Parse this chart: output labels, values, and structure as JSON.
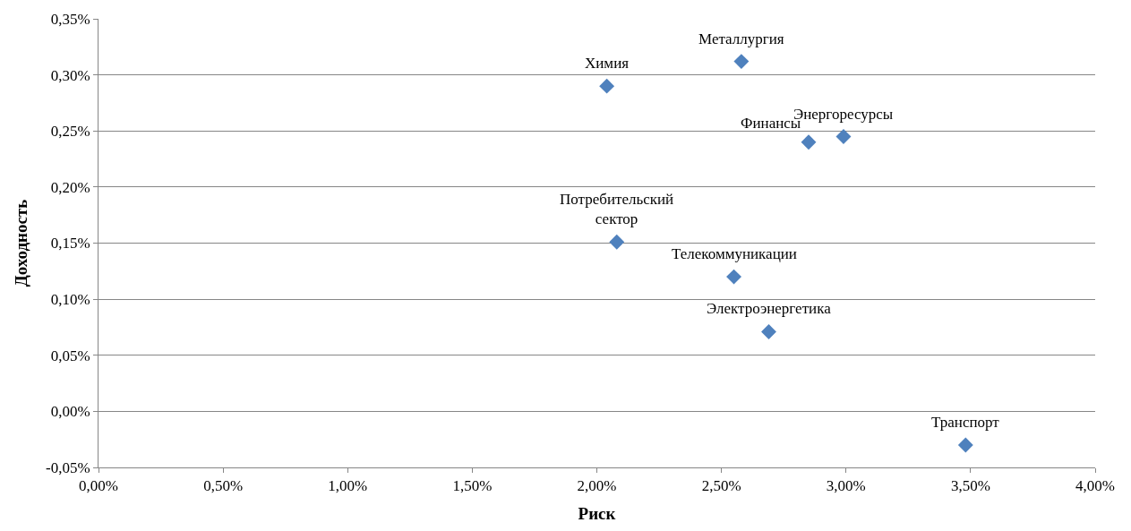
{
  "chart_data": {
    "type": "scatter",
    "xlabel": "Риск",
    "ylabel": "Доходность",
    "x": [
      2.04,
      2.58,
      2.85,
      2.99,
      2.08,
      2.55,
      2.69,
      3.48
    ],
    "values": [
      0.29,
      0.312,
      0.24,
      0.245,
      0.151,
      0.12,
      0.071,
      -0.03
    ],
    "color": "#4f81bd",
    "marker": "diamond",
    "grid": "y",
    "xlim": [
      0,
      4
    ],
    "ylim": [
      -0.05,
      0.35
    ],
    "xticks": [
      {
        "value": 0,
        "label": "0,00%"
      },
      {
        "value": 0.5,
        "label": "0,50%"
      },
      {
        "value": 1,
        "label": "1,00%"
      },
      {
        "value": 1.5,
        "label": "1,50%"
      },
      {
        "value": 2,
        "label": "2,00%"
      },
      {
        "value": 2.5,
        "label": "2,50%"
      },
      {
        "value": 3,
        "label": "3,00%"
      },
      {
        "value": 3.5,
        "label": "3,50%"
      },
      {
        "value": 4,
        "label": "4,00%"
      }
    ],
    "yticks": [
      {
        "value": -0.05,
        "label": "-0,05%"
      },
      {
        "value": 0,
        "label": "0,00%"
      },
      {
        "value": 0.05,
        "label": "0,05%"
      },
      {
        "value": 0.1,
        "label": "0,10%"
      },
      {
        "value": 0.15,
        "label": "0,15%"
      },
      {
        "value": 0.2,
        "label": "0,20%"
      },
      {
        "value": 0.25,
        "label": "0,25%"
      },
      {
        "value": 0.3,
        "label": "0,30%"
      },
      {
        "value": 0.35,
        "label": "0,35%"
      }
    ],
    "annotations": [
      {
        "text": "Химия",
        "x": 2.04,
        "y": 0.29
      },
      {
        "text": "Металлургия",
        "x": 2.58,
        "y": 0.312
      },
      {
        "text": "Финансы",
        "x": 2.85,
        "y": 0.24
      },
      {
        "text": "Энергоресурсы",
        "x": 2.99,
        "y": 0.245
      },
      {
        "text": "Потребительский\nсектор",
        "x": 2.08,
        "y": 0.151
      },
      {
        "text": "Телекоммуникации",
        "x": 2.55,
        "y": 0.12
      },
      {
        "text": "Электроэнергетика",
        "x": 2.69,
        "y": 0.071
      },
      {
        "text": "Транспорт",
        "x": 3.48,
        "y": -0.03
      }
    ]
  }
}
